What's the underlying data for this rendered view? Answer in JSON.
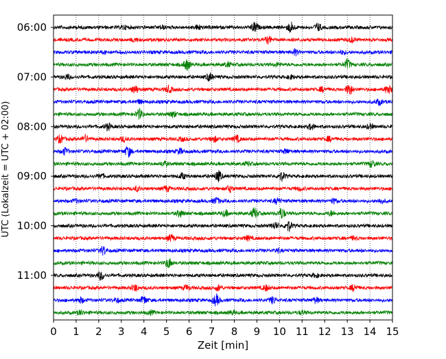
{
  "chart_data": {
    "type": "line",
    "chart_kind": "helicorder",
    "xlabel": "Zeit  [min]",
    "ylabel": "UTC (Lokalzeit = UTC + 02:00)",
    "xlim": [
      0,
      15
    ],
    "x_ticks": [
      "0",
      "1",
      "2",
      "3",
      "4",
      "5",
      "6",
      "7",
      "8",
      "9",
      "10",
      "11",
      "12",
      "13",
      "14",
      "15"
    ],
    "y_tick_labels": [
      "06:00",
      "07:00",
      "08:00",
      "09:00",
      "10:00",
      "11:00"
    ],
    "trace_colors": [
      "#000000",
      "#ff0000",
      "#0000ff",
      "#008000"
    ],
    "trace_count": 24,
    "trace_interval_min": 15,
    "grid": "vertical dotted at each minute",
    "rows": [
      {
        "start": "06:00",
        "color": "#000000",
        "bursts": [
          [
            8.9,
            1.0
          ],
          [
            10.5,
            1.0
          ],
          [
            11.7,
            0.7
          ],
          [
            3.1,
            0.3
          ],
          [
            4.8,
            0.3
          ],
          [
            6.4,
            0.4
          ]
        ]
      },
      {
        "start": "06:15",
        "color": "#ff0000",
        "bursts": [
          [
            9.5,
            0.6
          ],
          [
            13.2,
            0.4
          ],
          [
            3.6,
            0.3
          ]
        ]
      },
      {
        "start": "06:30",
        "color": "#0000ff",
        "bursts": [
          [
            10.7,
            0.5
          ],
          [
            12.8,
            0.3
          ],
          [
            2.3,
            0.2
          ]
        ]
      },
      {
        "start": "06:45",
        "color": "#008000",
        "bursts": [
          [
            5.9,
            1.0
          ],
          [
            13.0,
            0.9
          ],
          [
            7.7,
            0.4
          ],
          [
            9.9,
            0.3
          ]
        ]
      },
      {
        "start": "07:00",
        "color": "#000000",
        "bursts": [
          [
            6.9,
            0.7
          ],
          [
            0.6,
            0.4
          ],
          [
            10.5,
            0.3
          ]
        ]
      },
      {
        "start": "07:15",
        "color": "#ff0000",
        "bursts": [
          [
            13.1,
            1.0
          ],
          [
            14.8,
            0.8
          ],
          [
            3.6,
            0.7
          ],
          [
            5.1,
            0.6
          ],
          [
            11.9,
            0.4
          ]
        ]
      },
      {
        "start": "07:30",
        "color": "#0000ff",
        "bursts": [
          [
            14.4,
            0.5
          ],
          [
            3.8,
            0.3
          ]
        ]
      },
      {
        "start": "07:45",
        "color": "#008000",
        "bursts": [
          [
            3.8,
            0.9
          ],
          [
            5.3,
            0.5
          ]
        ]
      },
      {
        "start": "08:00",
        "color": "#000000",
        "bursts": [
          [
            2.4,
            0.6
          ],
          [
            11.4,
            0.5
          ],
          [
            14.0,
            0.4
          ]
        ]
      },
      {
        "start": "08:15",
        "color": "#ff0000",
        "bursts": [
          [
            0.3,
            0.7
          ],
          [
            1.4,
            0.6
          ],
          [
            8.1,
            0.6
          ],
          [
            7.1,
            0.5
          ],
          [
            12.2,
            0.4
          ],
          [
            3.1,
            0.4
          ],
          [
            5.7,
            0.3
          ]
        ]
      },
      {
        "start": "08:30",
        "color": "#0000ff",
        "bursts": [
          [
            3.3,
            1.0
          ],
          [
            0.5,
            0.6
          ],
          [
            5.6,
            0.5
          ],
          [
            10.3,
            0.4
          ]
        ]
      },
      {
        "start": "08:45",
        "color": "#008000",
        "bursts": [
          [
            14.1,
            0.6
          ],
          [
            4.9,
            0.4
          ],
          [
            8.6,
            0.3
          ]
        ]
      },
      {
        "start": "09:00",
        "color": "#000000",
        "bursts": [
          [
            7.3,
            1.0
          ],
          [
            10.1,
            0.8
          ],
          [
            5.7,
            0.5
          ],
          [
            2.1,
            0.4
          ]
        ]
      },
      {
        "start": "09:15",
        "color": "#ff0000",
        "bursts": [
          [
            7.8,
            0.6
          ],
          [
            5.0,
            0.5
          ],
          [
            3.7,
            0.4
          ],
          [
            10.9,
            0.3
          ]
        ]
      },
      {
        "start": "09:30",
        "color": "#0000ff",
        "bursts": [
          [
            7.2,
            0.6
          ],
          [
            9.9,
            0.5
          ],
          [
            12.4,
            0.4
          ],
          [
            14.5,
            0.4
          ],
          [
            1.0,
            0.3
          ]
        ]
      },
      {
        "start": "09:45",
        "color": "#008000",
        "bursts": [
          [
            8.9,
            1.0
          ],
          [
            10.1,
            1.0
          ],
          [
            5.6,
            0.6
          ],
          [
            7.6,
            0.5
          ],
          [
            12.3,
            0.4
          ]
        ]
      },
      {
        "start": "10:00",
        "color": "#000000",
        "bursts": [
          [
            10.4,
            1.0
          ],
          [
            9.8,
            0.6
          ]
        ]
      },
      {
        "start": "10:15",
        "color": "#ff0000",
        "bursts": [
          [
            5.2,
            0.6
          ],
          [
            8.6,
            0.4
          ],
          [
            13.3,
            0.3
          ]
        ]
      },
      {
        "start": "10:30",
        "color": "#0000ff",
        "bursts": [
          [
            2.2,
            0.8
          ],
          [
            9.9,
            0.3
          ]
        ]
      },
      {
        "start": "10:45",
        "color": "#008000",
        "bursts": [
          [
            5.1,
            0.9
          ]
        ]
      },
      {
        "start": "11:00",
        "color": "#000000",
        "bursts": [
          [
            2.1,
            0.8
          ],
          [
            11.6,
            0.3
          ]
        ]
      },
      {
        "start": "11:15",
        "color": "#ff0000",
        "bursts": [
          [
            3.6,
            0.6
          ],
          [
            7.3,
            0.5
          ],
          [
            9.4,
            0.5
          ],
          [
            13.3,
            0.6
          ],
          [
            5.9,
            0.4
          ]
        ]
      },
      {
        "start": "11:30",
        "color": "#0000ff",
        "bursts": [
          [
            7.2,
            1.0
          ],
          [
            4.0,
            0.7
          ],
          [
            1.2,
            0.5
          ],
          [
            9.7,
            0.6
          ],
          [
            11.6,
            0.5
          ],
          [
            2.8,
            0.4
          ]
        ]
      },
      {
        "start": "11:45",
        "color": "#008000",
        "bursts": [
          [
            1.2,
            0.4
          ],
          [
            4.3,
            0.3
          ],
          [
            7.9,
            0.3
          ],
          [
            11.0,
            0.3
          ]
        ]
      }
    ]
  }
}
